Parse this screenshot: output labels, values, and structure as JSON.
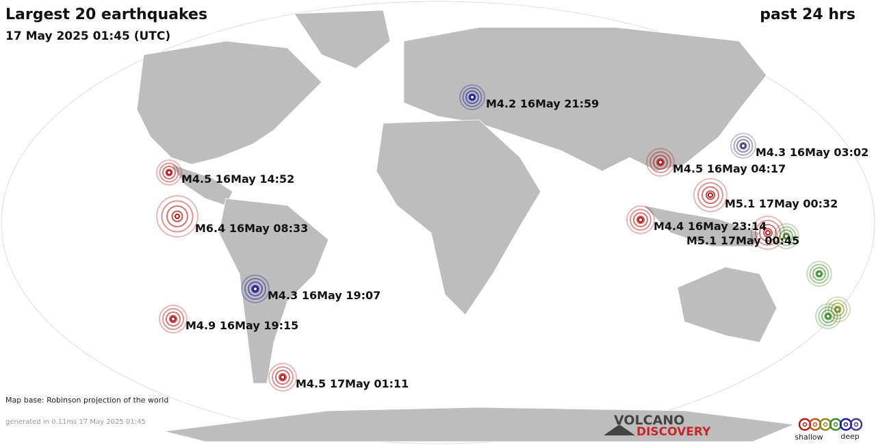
{
  "header": {
    "title": "Largest 20 earthquakes",
    "subtitle": "17 May 2025 01:45 (UTC)",
    "period": "past 24 hrs"
  },
  "quakes": [
    {
      "label": "M4.2 16May 21:59",
      "color": "#1a1a9a"
    },
    {
      "label": "M4.3 16May 03:02",
      "color": "#4a3a80"
    },
    {
      "label": "M4.5 16May 04:17",
      "color": "#b01818"
    },
    {
      "label": "M4.5 16May 14:52",
      "color": "#b01818"
    },
    {
      "label": "M5.1 17May 00:32",
      "color": "#b01818"
    },
    {
      "label": "M6.4 16May 08:33",
      "color": "#b01818"
    },
    {
      "label": "M4.4 16May 23:14",
      "color": "#b01818"
    },
    {
      "label": "M5.1 17May 00:45",
      "color": "#b01818"
    },
    {
      "label": "M4.3 16May 19:07",
      "color": "#1a1a9a"
    },
    {
      "label": "M4.9 16May 19:15",
      "color": "#b01818"
    },
    {
      "label": "M4.5 17May 01:11",
      "color": "#b01818"
    }
  ],
  "footer": {
    "map_base": "Map base: Robinson projection of the world",
    "generated": "generated in 0.11ms 17 May 2025 01:45"
  },
  "logo": {
    "line1": "VOLCANO",
    "line2": "DISCOVERY"
  },
  "legend": {
    "shallow": "shallow",
    "deep": "deep"
  }
}
